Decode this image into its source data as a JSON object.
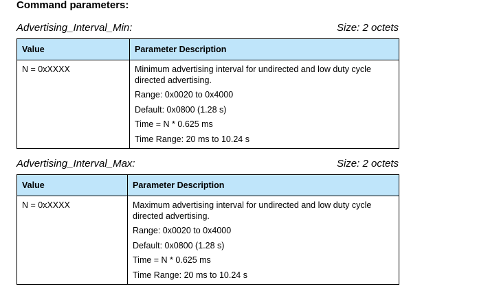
{
  "section_title": "Command parameters:",
  "parameters": [
    {
      "name": "Advertising_Interval_Min:",
      "size": "Size: 2 octets",
      "columns": {
        "value": "Value",
        "description": "Parameter Description"
      },
      "row": {
        "value": "N = 0xXXXX",
        "description": "Minimum advertising interval for undirected and low duty cycle directed advertising.",
        "range": "Range: 0x0020 to 0x4000",
        "default": "Default: 0x0800 (1.28 s)",
        "time": "Time = N * 0.625 ms",
        "time_range": "Time Range: 20 ms to 10.24 s"
      }
    },
    {
      "name": "Advertising_Interval_Max:",
      "size": "Size: 2 octets",
      "columns": {
        "value": "Value",
        "description": "Parameter Description"
      },
      "row": {
        "value": "N = 0xXXXX",
        "description": "Maximum advertising interval for undirected and low duty cycle directed advertising.",
        "range": "Range: 0x0020 to 0x4000",
        "default": "Default: 0x0800 (1.28 s)",
        "time": "Time = N * 0.625 ms",
        "time_range": "Time Range: 20 ms to 10.24 s"
      }
    }
  ]
}
